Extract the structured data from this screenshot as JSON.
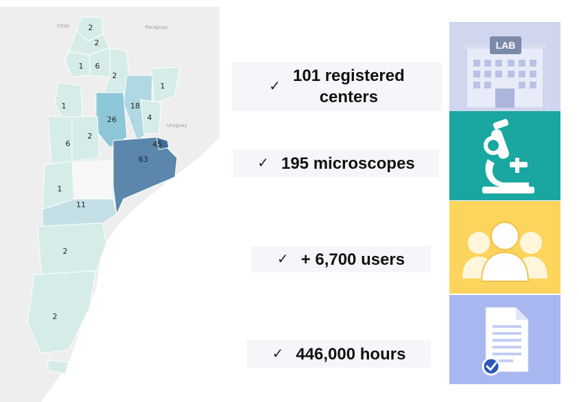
{
  "map": {
    "country_labels": [
      "Chile",
      "Paraguay",
      "Uruguay"
    ],
    "provinces": [
      {
        "name": "Jujuy",
        "count": "2",
        "color": "#d6ece8"
      },
      {
        "name": "Salta (north)",
        "count": "2",
        "color": "#d6ece8"
      },
      {
        "name": "Tucumán",
        "count": "1",
        "color": "#d6ece8"
      },
      {
        "name": "Salta",
        "count": "6",
        "color": "#d6ece8"
      },
      {
        "name": "Santiago del Estero",
        "count": "2",
        "color": "#d6ece8"
      },
      {
        "name": "Misiones",
        "count": "1",
        "color": "#d6ece8"
      },
      {
        "name": "Catamarca/La Rioja",
        "count": "1",
        "color": "#d6ece8"
      },
      {
        "name": "Santa Fe",
        "count": "18",
        "color": "#b0d8e2"
      },
      {
        "name": "Córdoba",
        "count": "26",
        "color": "#8ec8d8"
      },
      {
        "name": "Entre Ríos",
        "count": "4",
        "color": "#d6ece8"
      },
      {
        "name": "San Juan",
        "count": "6",
        "color": "#d6ece8"
      },
      {
        "name": "San Luis",
        "count": "2",
        "color": "#d6ece8"
      },
      {
        "name": "CABA",
        "count": "45",
        "color": "#3d6d96"
      },
      {
        "name": "Buenos Aires",
        "count": "63",
        "color": "#5a87ab"
      },
      {
        "name": "Neuquén",
        "count": "1",
        "color": "#d6ece8"
      },
      {
        "name": "Río Negro",
        "count": "11",
        "color": "#c4e0e6"
      },
      {
        "name": "Chubut",
        "count": "2",
        "color": "#d6ece8"
      },
      {
        "name": "Santa Cruz",
        "count": "2",
        "color": "#d6ece8"
      }
    ]
  },
  "stats": [
    {
      "check": "✓",
      "lines": [
        "101 registered",
        "centers"
      ]
    },
    {
      "check": "✓",
      "lines": [
        "195 microscopes"
      ]
    },
    {
      "check": "✓",
      "lines": [
        "+ 6,700 users"
      ]
    },
    {
      "check": "✓",
      "lines": [
        "446,000 hours"
      ]
    }
  ],
  "tiles": [
    {
      "icon": "lab-building-icon",
      "bg": "#cfd6ee",
      "sign": "LAB"
    },
    {
      "icon": "microscope-icon",
      "bg": "#1aa7a1"
    },
    {
      "icon": "users-group-icon",
      "bg": "#fdd45c"
    },
    {
      "icon": "document-check-icon",
      "bg": "#a9b7f0"
    }
  ]
}
